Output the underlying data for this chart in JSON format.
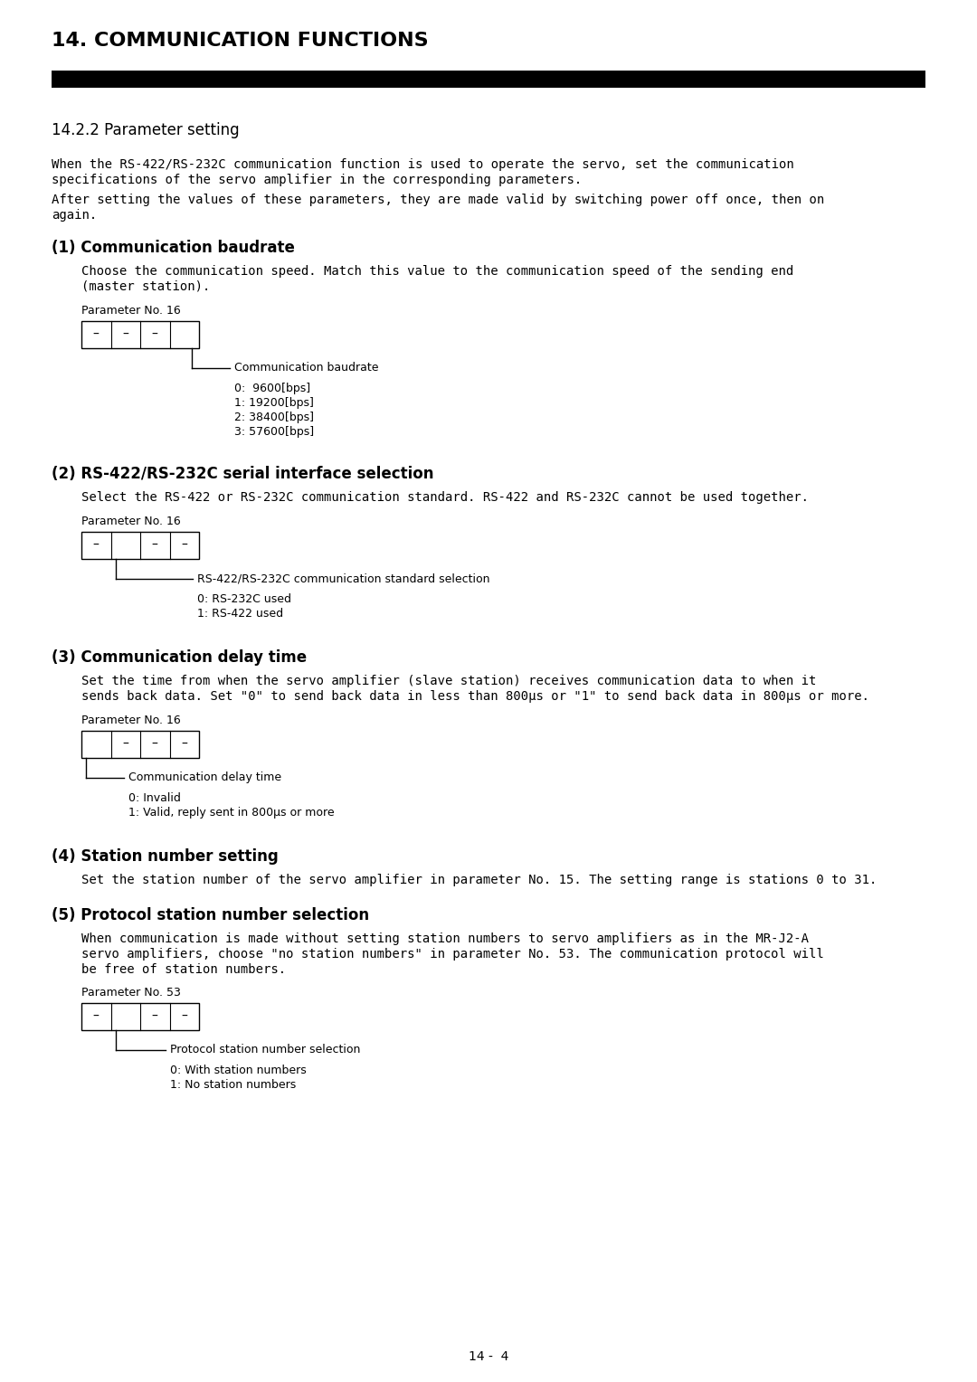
{
  "title": "14. COMMUNICATION FUNCTIONS",
  "section": "14.2.2 Parameter setting",
  "intro_text1a": "When the RS-422/RS-232C communication function is used to operate the servo, set the communication",
  "intro_text1b": "specifications of the servo amplifier in the corresponding parameters.",
  "intro_text2a": "After setting the values of these parameters, they are made valid by switching power off once, then on",
  "intro_text2b": "again.",
  "sec1_title": "(1) Communication baudrate",
  "sec1_body1": "Choose the communication speed. Match this value to the communication speed of the sending end",
  "sec1_body2": "(master station).",
  "sec1_param": "Parameter No. 16",
  "sec1_dashes": [
    "–",
    "–",
    "–",
    ""
  ],
  "sec1_label": "Communication baudrate",
  "sec1_items": [
    "0:  9600[bps]",
    "1: 19200[bps]",
    "2: 38400[bps]",
    "3: 57600[bps]"
  ],
  "sec2_title": "(2) RS-422/RS-232C serial interface selection",
  "sec2_body1": "Select the RS-422 or RS-232C communication standard. RS-422 and RS-232C cannot be used together.",
  "sec2_param": "Parameter No. 16",
  "sec2_dashes": [
    "–",
    "",
    "–",
    "–"
  ],
  "sec2_label": "RS-422/RS-232C communication standard selection",
  "sec2_items": [
    "0: RS-232C used",
    "1: RS-422 used"
  ],
  "sec3_title": "(3) Communication delay time",
  "sec3_body1": "Set the time from when the servo amplifier (slave station) receives communication data to when it",
  "sec3_body2": "sends back data. Set \"0\" to send back data in less than 800μs or \"1\" to send back data in 800μs or more.",
  "sec3_param": "Parameter No. 16",
  "sec3_dashes": [
    "",
    "–",
    "–",
    "–"
  ],
  "sec3_label": "Communication delay time",
  "sec3_items": [
    "0: Invalid",
    "1: Valid, reply sent in 800μs or more"
  ],
  "sec4_title": "(4) Station number setting",
  "sec4_body": "Set the station number of the servo amplifier in parameter No. 15. The setting range is stations 0 to 31.",
  "sec5_title": "(5) Protocol station number selection",
  "sec5_body1": "When communication is made without setting station numbers to servo amplifiers as in the MR-J2-A",
  "sec5_body2": "servo amplifiers, choose \"no station numbers\" in parameter No. 53. The communication protocol will",
  "sec5_body3": "be free of station numbers.",
  "sec5_param": "Parameter No. 53",
  "sec5_dashes": [
    "–",
    "",
    "–",
    "–"
  ],
  "sec5_label": "Protocol station number selection",
  "sec5_items": [
    "0: With station numbers",
    "1: No station numbers"
  ],
  "footer": "14 -  4",
  "bg_color": "#ffffff",
  "text_color": "#000000",
  "header_bar_color": "#000000"
}
